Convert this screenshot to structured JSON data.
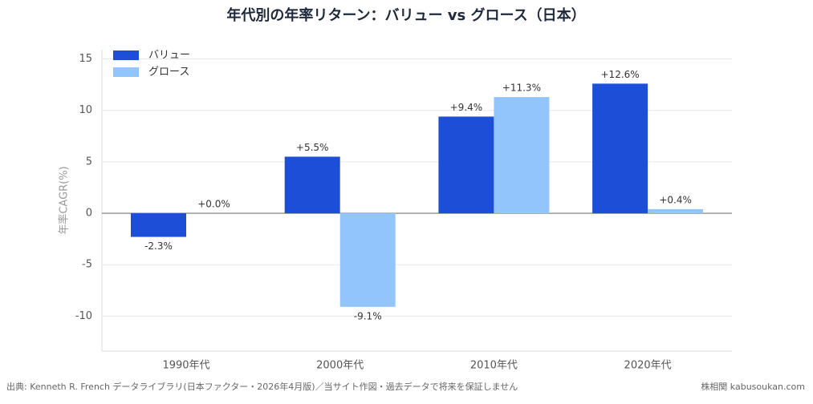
{
  "chart_data": {
    "type": "bar",
    "title": "年代別の年率リターン：バリュー vs グロース（日本）",
    "y_label": "年率CAGR(%)",
    "categories": [
      "1990年代",
      "2000年代",
      "2010年代",
      "2020年代"
    ],
    "series": [
      {
        "name": "バリュー",
        "color": "#1d4ed8",
        "values": [
          -2.3,
          5.5,
          9.4,
          12.6
        ],
        "value_labels": [
          "-2.3%",
          "+5.5%",
          "+9.4%",
          "+12.6%"
        ]
      },
      {
        "name": "グロース",
        "color": "#93c5fd",
        "values": [
          0.0,
          -9.1,
          11.3,
          0.4
        ],
        "value_labels": [
          "+0.0%",
          "-9.1%",
          "+11.3%",
          "+0.4%"
        ]
      }
    ],
    "ylim": [
      -13.4,
      15.9
    ],
    "yticks": [
      -10,
      -5,
      0,
      5,
      10,
      15
    ],
    "grid": true,
    "legend": "upper-left",
    "source": "出典: Kenneth R. French データライブラリ(日本ファクター・2026年4月版)／当サイト作図・過去データで将来を保証しません",
    "credit": "株相関 kabusoukan.com"
  }
}
